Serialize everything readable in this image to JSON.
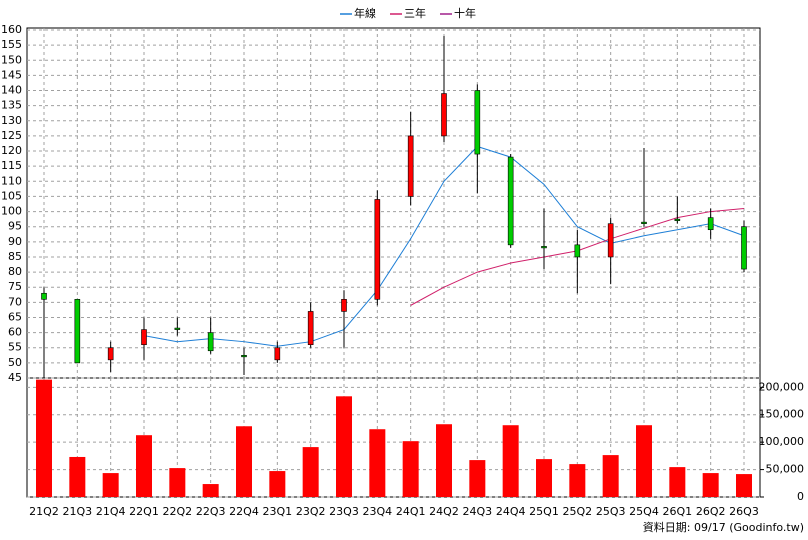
{
  "chart_data": {
    "type": "candlestick",
    "categories": [
      "21Q2",
      "21Q3",
      "21Q4",
      "22Q1",
      "22Q2",
      "22Q3",
      "22Q4",
      "23Q1",
      "23Q2",
      "23Q3",
      "23Q4",
      "24Q1",
      "24Q2",
      "24Q3",
      "24Q4",
      "25Q1",
      "25Q2",
      "25Q3",
      "25Q4",
      "26Q1",
      "26Q2",
      "26Q3"
    ],
    "open": [
      73,
      71,
      51,
      56,
      61.5,
      60,
      52.5,
      51,
      56,
      67,
      71,
      105,
      125,
      140,
      118,
      88.5,
      89,
      85,
      96.5,
      97.5,
      98,
      95
    ],
    "high": [
      75,
      71,
      57,
      65,
      65,
      65,
      55,
      57,
      70,
      74,
      107,
      133,
      158,
      142,
      119,
      101,
      94,
      98,
      121,
      105,
      101,
      97
    ],
    "low": [
      45,
      50,
      47,
      51,
      59,
      53,
      46,
      50,
      55,
      55,
      69,
      102,
      123,
      106,
      88,
      81,
      73,
      76,
      95,
      96,
      91,
      80
    ],
    "close": [
      71,
      50,
      55,
      61,
      61,
      54,
      52,
      55,
      67,
      71,
      104,
      125,
      139,
      119,
      89,
      88,
      85,
      96,
      96,
      97,
      94,
      81
    ],
    "up_color": "#ff0000",
    "down_color": "#00cc00",
    "series": [
      {
        "name": "年線",
        "color": "#1e7fd6",
        "values": [
          null,
          null,
          null,
          59,
          57,
          58,
          57,
          55.5,
          57,
          61,
          74,
          91,
          110,
          121.5,
          118,
          109,
          95,
          89.5,
          92,
          94,
          96,
          92
        ]
      },
      {
        "name": "三年",
        "color": "#d0206a",
        "values": [
          null,
          null,
          null,
          null,
          null,
          null,
          null,
          null,
          null,
          null,
          null,
          69,
          75,
          80,
          83,
          85,
          87,
          91,
          94.5,
          98,
          100,
          101
        ]
      },
      {
        "name": "十年",
        "color": "#a0208a",
        "values": [
          null,
          null,
          null,
          null,
          null,
          null,
          null,
          null,
          null,
          null,
          null,
          null,
          null,
          null,
          null,
          null,
          null,
          null,
          null,
          null,
          null,
          null
        ]
      }
    ],
    "ylim": [
      45,
      160
    ],
    "yticks": [
      45,
      50,
      55,
      60,
      65,
      70,
      75,
      80,
      85,
      90,
      95,
      100,
      105,
      110,
      115,
      120,
      125,
      130,
      135,
      140,
      145,
      150,
      155,
      160
    ],
    "grid": true,
    "volume": {
      "color": "#ff0000",
      "values": [
        214000,
        73000,
        43600,
        112700,
        52700,
        23600,
        129000,
        47300,
        91000,
        183600,
        123600,
        101800,
        132700,
        67300,
        130900,
        69100,
        60000,
        76400,
        130900,
        54500,
        43600,
        41800
      ],
      "ylim": [
        0,
        217000
      ],
      "yticks": [
        0,
        {
          "value": 50000,
          "label": "50,000"
        },
        {
          "value": 100000,
          "label": "100,000"
        },
        {
          "value": 150000,
          "label": "150,000"
        },
        {
          "value": 200000,
          "label": "200,000"
        }
      ]
    },
    "footer": "資料日期: 09/17 (Goodinfo.tw)"
  }
}
